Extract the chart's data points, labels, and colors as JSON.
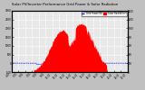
{
  "title": "Solar PV/Inverter Performance Grid Power & Solar Radiation",
  "bg_color": "#c0c0c0",
  "plot_bg": "#e8e8e8",
  "grid_color": "#ffffff",
  "solar_color": "#ff0000",
  "grid_power_color": "#0000ff",
  "n": 288,
  "legend_labels": [
    "Grid Power(W)",
    "Solar Rad(W/m²)"
  ],
  "legend_colors": [
    "#0000ff",
    "#ff0000"
  ],
  "ylim_left": [
    -500,
    3000
  ],
  "ylim_right": [
    0,
    1400
  ],
  "xlim": [
    0,
    287
  ]
}
